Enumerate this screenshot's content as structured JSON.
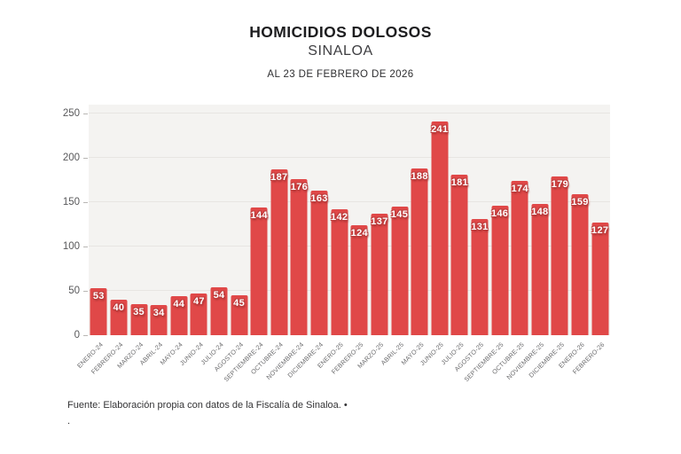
{
  "header": {
    "title": "HOMICIDIOS DOLOSOS",
    "subtitle": "SINALOA",
    "date_line": "AL 23 DE FEBRERO DE 2026"
  },
  "chart_data": {
    "type": "bar",
    "title": "HOMICIDIOS DOLOSOS",
    "subtitle": "SINALOA",
    "annotation": "AL 23 DE FEBRERO DE 2026",
    "categories": [
      "ENERO-24",
      "FEBRERO-24",
      "MARZO-24",
      "ABRIL-24",
      "MAYO-24",
      "JUNIO-24",
      "JULIO-24",
      "AGOSTO-24",
      "SEPTIEMBRE-24",
      "OCTUBRE-24",
      "NOVIEMBRE-24",
      "DICIEMBRE-24",
      "ENERO-25",
      "FEBRERO-25",
      "MARZO-25",
      "ABRIL-25",
      "MAYO-25",
      "JUNIO-25",
      "JULIO-25",
      "AGOSTO-25",
      "SEPTIEMBRE-25",
      "OCTUBRE-25",
      "NOVIEMBRE-25",
      "DICIEMBRE-25",
      "ENERO-26",
      "FEBRERO-26"
    ],
    "values": [
      53,
      40,
      35,
      34,
      44,
      47,
      54,
      45,
      144,
      187,
      176,
      163,
      142,
      124,
      137,
      145,
      188,
      241,
      181,
      131,
      146,
      174,
      148,
      179,
      159,
      127
    ],
    "xlabel": "",
    "ylabel": "",
    "ylim": [
      0,
      250
    ],
    "yticks": [
      0,
      50,
      100,
      150,
      200,
      250
    ],
    "grid": true,
    "legend": "none",
    "bar_color": "#e04848",
    "value_label_color": "#ffffff",
    "plot_background": "#f4f3f1"
  },
  "footer": {
    "source": "Fuente: Elaboración propia con datos de la Fiscalía de Sinaloa. •",
    "line2": "."
  }
}
